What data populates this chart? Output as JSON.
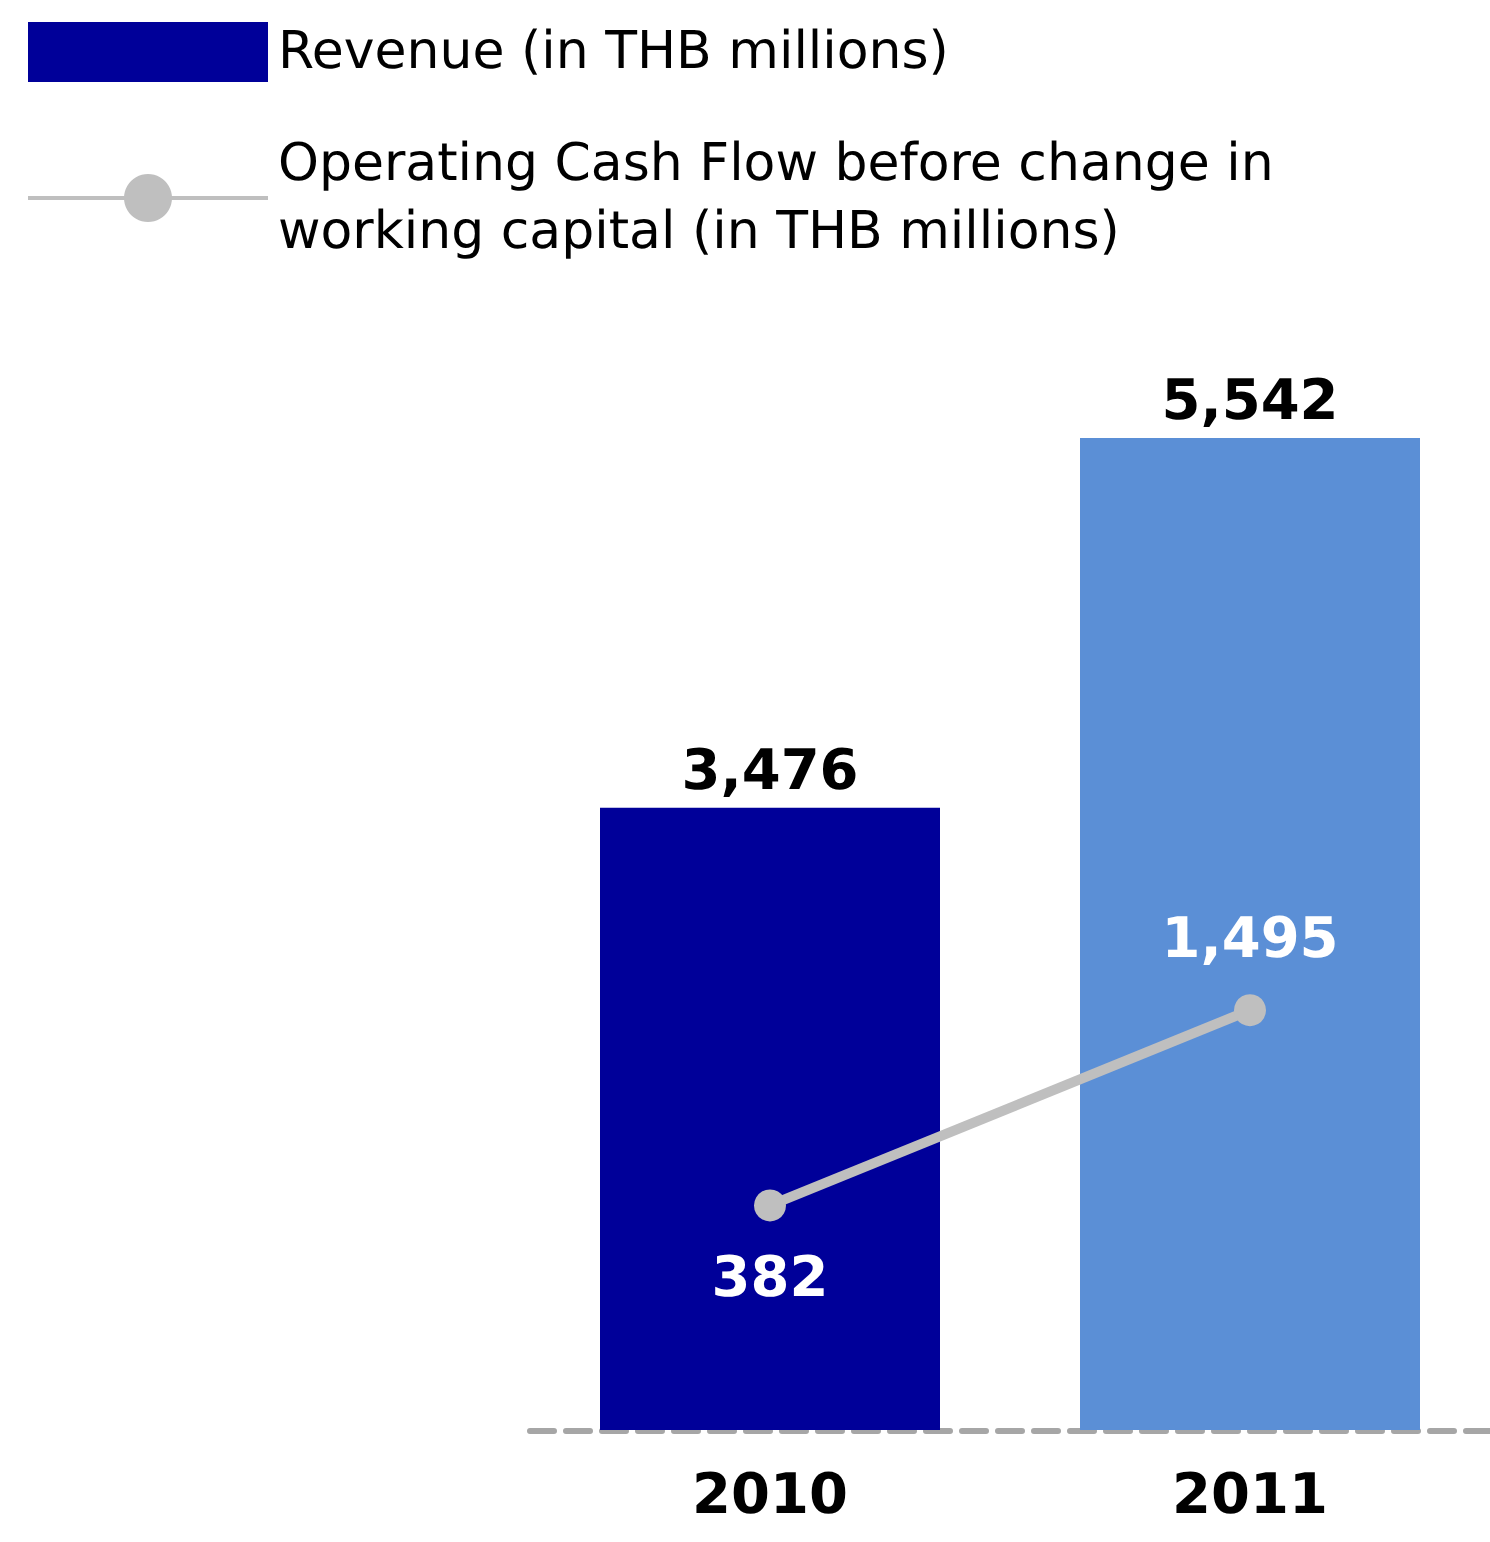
{
  "chart_data": {
    "type": "bar",
    "categories": [
      "2010",
      "2011"
    ],
    "series": [
      {
        "name": "Revenue (in THB millions)",
        "colors": [
          "#000099",
          "#5b8fd6"
        ],
        "values": [
          3476,
          5542
        ],
        "value_labels": [
          "3,476",
          "5,542"
        ]
      },
      {
        "name": "Operating Cash Flow before change in working capital (in THB millions)",
        "type": "line",
        "axis": "y2",
        "color": "#bfbfbf",
        "values": [
          382,
          1495
        ],
        "value_labels": [
          "382",
          "1,495"
        ]
      }
    ],
    "marker": "circle",
    "legend": "top left"
  }
}
